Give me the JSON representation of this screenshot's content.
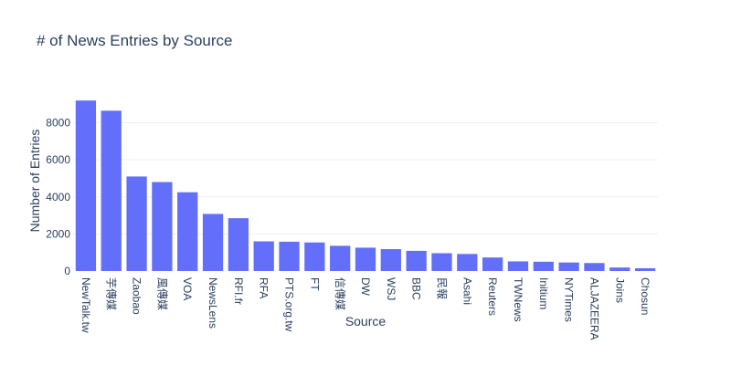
{
  "chart_data": {
    "type": "bar",
    "title": "# of News Entries by Source",
    "xlabel": "Source",
    "ylabel": "Number of Entries",
    "ylim": [
      0,
      9700
    ],
    "yticks": [
      0,
      2000,
      4000,
      6000,
      8000
    ],
    "grid": true,
    "bar_color": "#636efa",
    "categories": [
      "NewTalk.tw",
      "芋傳媒",
      "Zaobao",
      "風傳媒",
      "VOA",
      "NewsLens",
      "RFI.fr",
      "RFA",
      "PTS.org.tw",
      "FT",
      "信傳媒",
      "DW",
      "WSJ",
      "BBC",
      "民報",
      "Asahi",
      "Reuters",
      "TWNews",
      "Initium",
      "NYTimes",
      "ALJAZEERA",
      "Joins",
      "Chosun"
    ],
    "values": [
      9200,
      8650,
      5100,
      4800,
      4250,
      3080,
      2850,
      1600,
      1580,
      1540,
      1360,
      1260,
      1180,
      1090,
      960,
      920,
      730,
      520,
      500,
      460,
      430,
      190,
      150
    ]
  }
}
